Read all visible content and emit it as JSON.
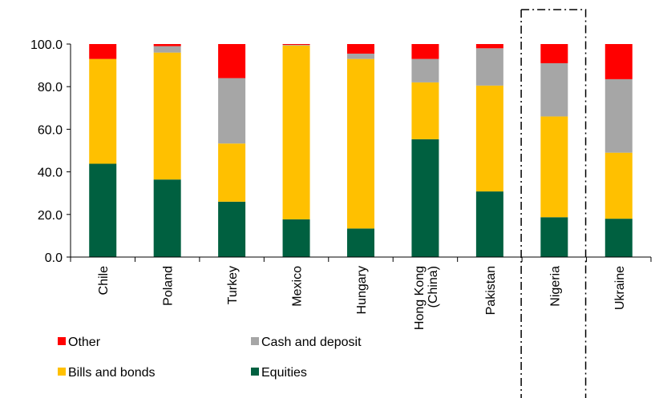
{
  "chart_data": {
    "type": "bar",
    "stacked": true,
    "title": "",
    "xlabel": "",
    "ylabel": "",
    "ylim": [
      0,
      100
    ],
    "yticks": [
      "0.0",
      "20.0",
      "40.0",
      "60.0",
      "80.0",
      "100.0"
    ],
    "ytick_values": [
      0,
      20,
      40,
      60,
      80,
      100
    ],
    "grid": false,
    "legend_position": "bottom-left",
    "categories": [
      [
        "Chile"
      ],
      [
        "Poland"
      ],
      [
        "Turkey"
      ],
      [
        "Mexico"
      ],
      [
        "Hungary"
      ],
      [
        "Hong Kong",
        "(China)"
      ],
      [
        "Pakistan"
      ],
      [
        "Nigeria"
      ],
      [
        "Ukraine"
      ]
    ],
    "highlighted_categories": [
      "Nigeria",
      "Ukraine"
    ],
    "series": [
      {
        "name": "Equities",
        "color": "#006040",
        "values": [
          43.8,
          36.4,
          26.0,
          17.7,
          13.4,
          55.3,
          30.8,
          18.7,
          18.0
        ]
      },
      {
        "name": "Bills and bonds",
        "color": "#FFC000",
        "values": [
          49.2,
          59.6,
          27.3,
          81.6,
          79.6,
          26.7,
          49.7,
          47.3,
          31.0
        ]
      },
      {
        "name": "Cash and deposit",
        "color": "#A6A6A6",
        "values": [
          0.0,
          3.0,
          30.7,
          0.3,
          2.5,
          11.0,
          17.5,
          25.0,
          34.5
        ]
      },
      {
        "name": "Other",
        "color": "#FF0000",
        "values": [
          7.0,
          1.0,
          16.0,
          0.4,
          4.5,
          7.0,
          2.0,
          9.0,
          16.5
        ]
      }
    ],
    "legend": [
      {
        "label": "Other",
        "color": "#FF0000"
      },
      {
        "label": "Cash and deposit",
        "color": "#A6A6A6"
      },
      {
        "label": "Bills and bonds",
        "color": "#FFC000"
      },
      {
        "label": "Equities",
        "color": "#006040"
      }
    ]
  }
}
